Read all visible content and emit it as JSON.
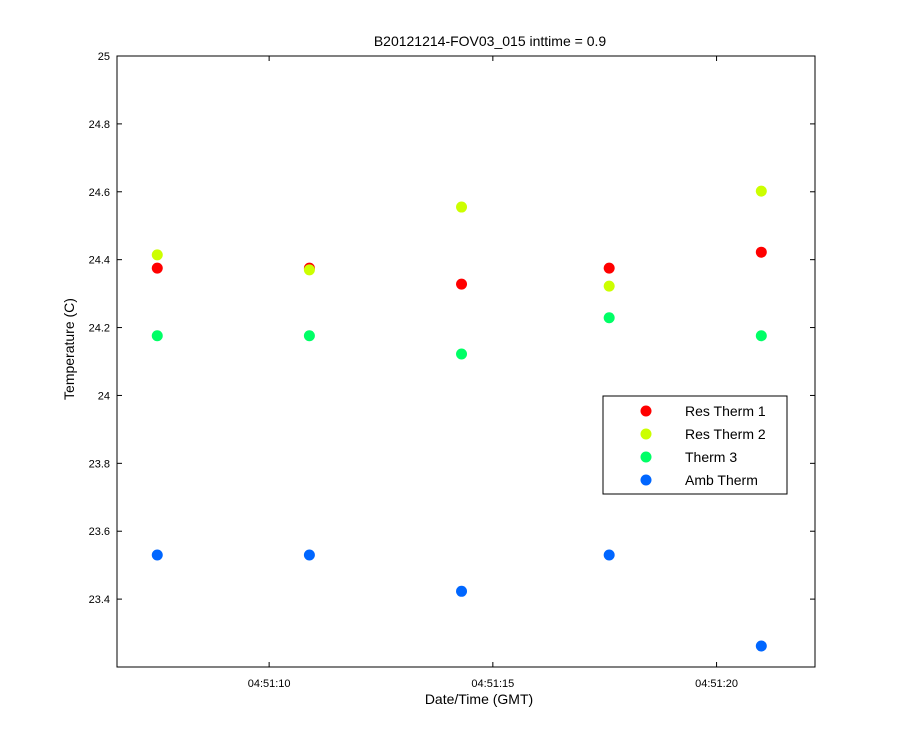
{
  "chart_data": {
    "type": "scatter",
    "title": "B20121214-FOV03_015 inttime = 0.9",
    "xlabel": "Date/Time (GMT)",
    "ylabel": "Temperature (C)",
    "x_unit": "seconds after 04:51:00 GMT",
    "xlim": [
      6.6,
      22.2
    ],
    "ylim": [
      23.2,
      25.0
    ],
    "x_ticks": [
      {
        "value": 10,
        "label": "04:51:10"
      },
      {
        "value": 15,
        "label": "04:51:15"
      },
      {
        "value": 20,
        "label": "04:51:20"
      }
    ],
    "y_ticks": [
      {
        "value": 23.4,
        "label": "23.4"
      },
      {
        "value": 23.6,
        "label": "23.6"
      },
      {
        "value": 23.8,
        "label": "23.8"
      },
      {
        "value": 24.0,
        "label": "24"
      },
      {
        "value": 24.2,
        "label": "24.2"
      },
      {
        "value": 24.4,
        "label": "24.4"
      },
      {
        "value": 24.6,
        "label": "24.6"
      },
      {
        "value": 24.8,
        "label": "24.8"
      },
      {
        "value": 25.0,
        "label": "25"
      }
    ],
    "x": [
      7.5,
      10.9,
      14.3,
      17.6,
      21.0
    ],
    "series": [
      {
        "name": "Res Therm 1",
        "color": "#ff0000",
        "values": [
          24.375,
          24.375,
          24.328,
          24.375,
          24.422
        ]
      },
      {
        "name": "Res Therm 2",
        "color": "#ccff00",
        "values": [
          24.414,
          24.37,
          24.555,
          24.322,
          24.602
        ]
      },
      {
        "name": "Therm 3",
        "color": "#00ff66",
        "values": [
          24.176,
          24.176,
          24.122,
          24.229,
          24.176
        ]
      },
      {
        "name": "Amb Therm",
        "color": "#0066ff",
        "values": [
          23.53,
          23.53,
          23.423,
          23.53,
          23.262
        ]
      }
    ],
    "grid": false,
    "legend_position": "right"
  }
}
